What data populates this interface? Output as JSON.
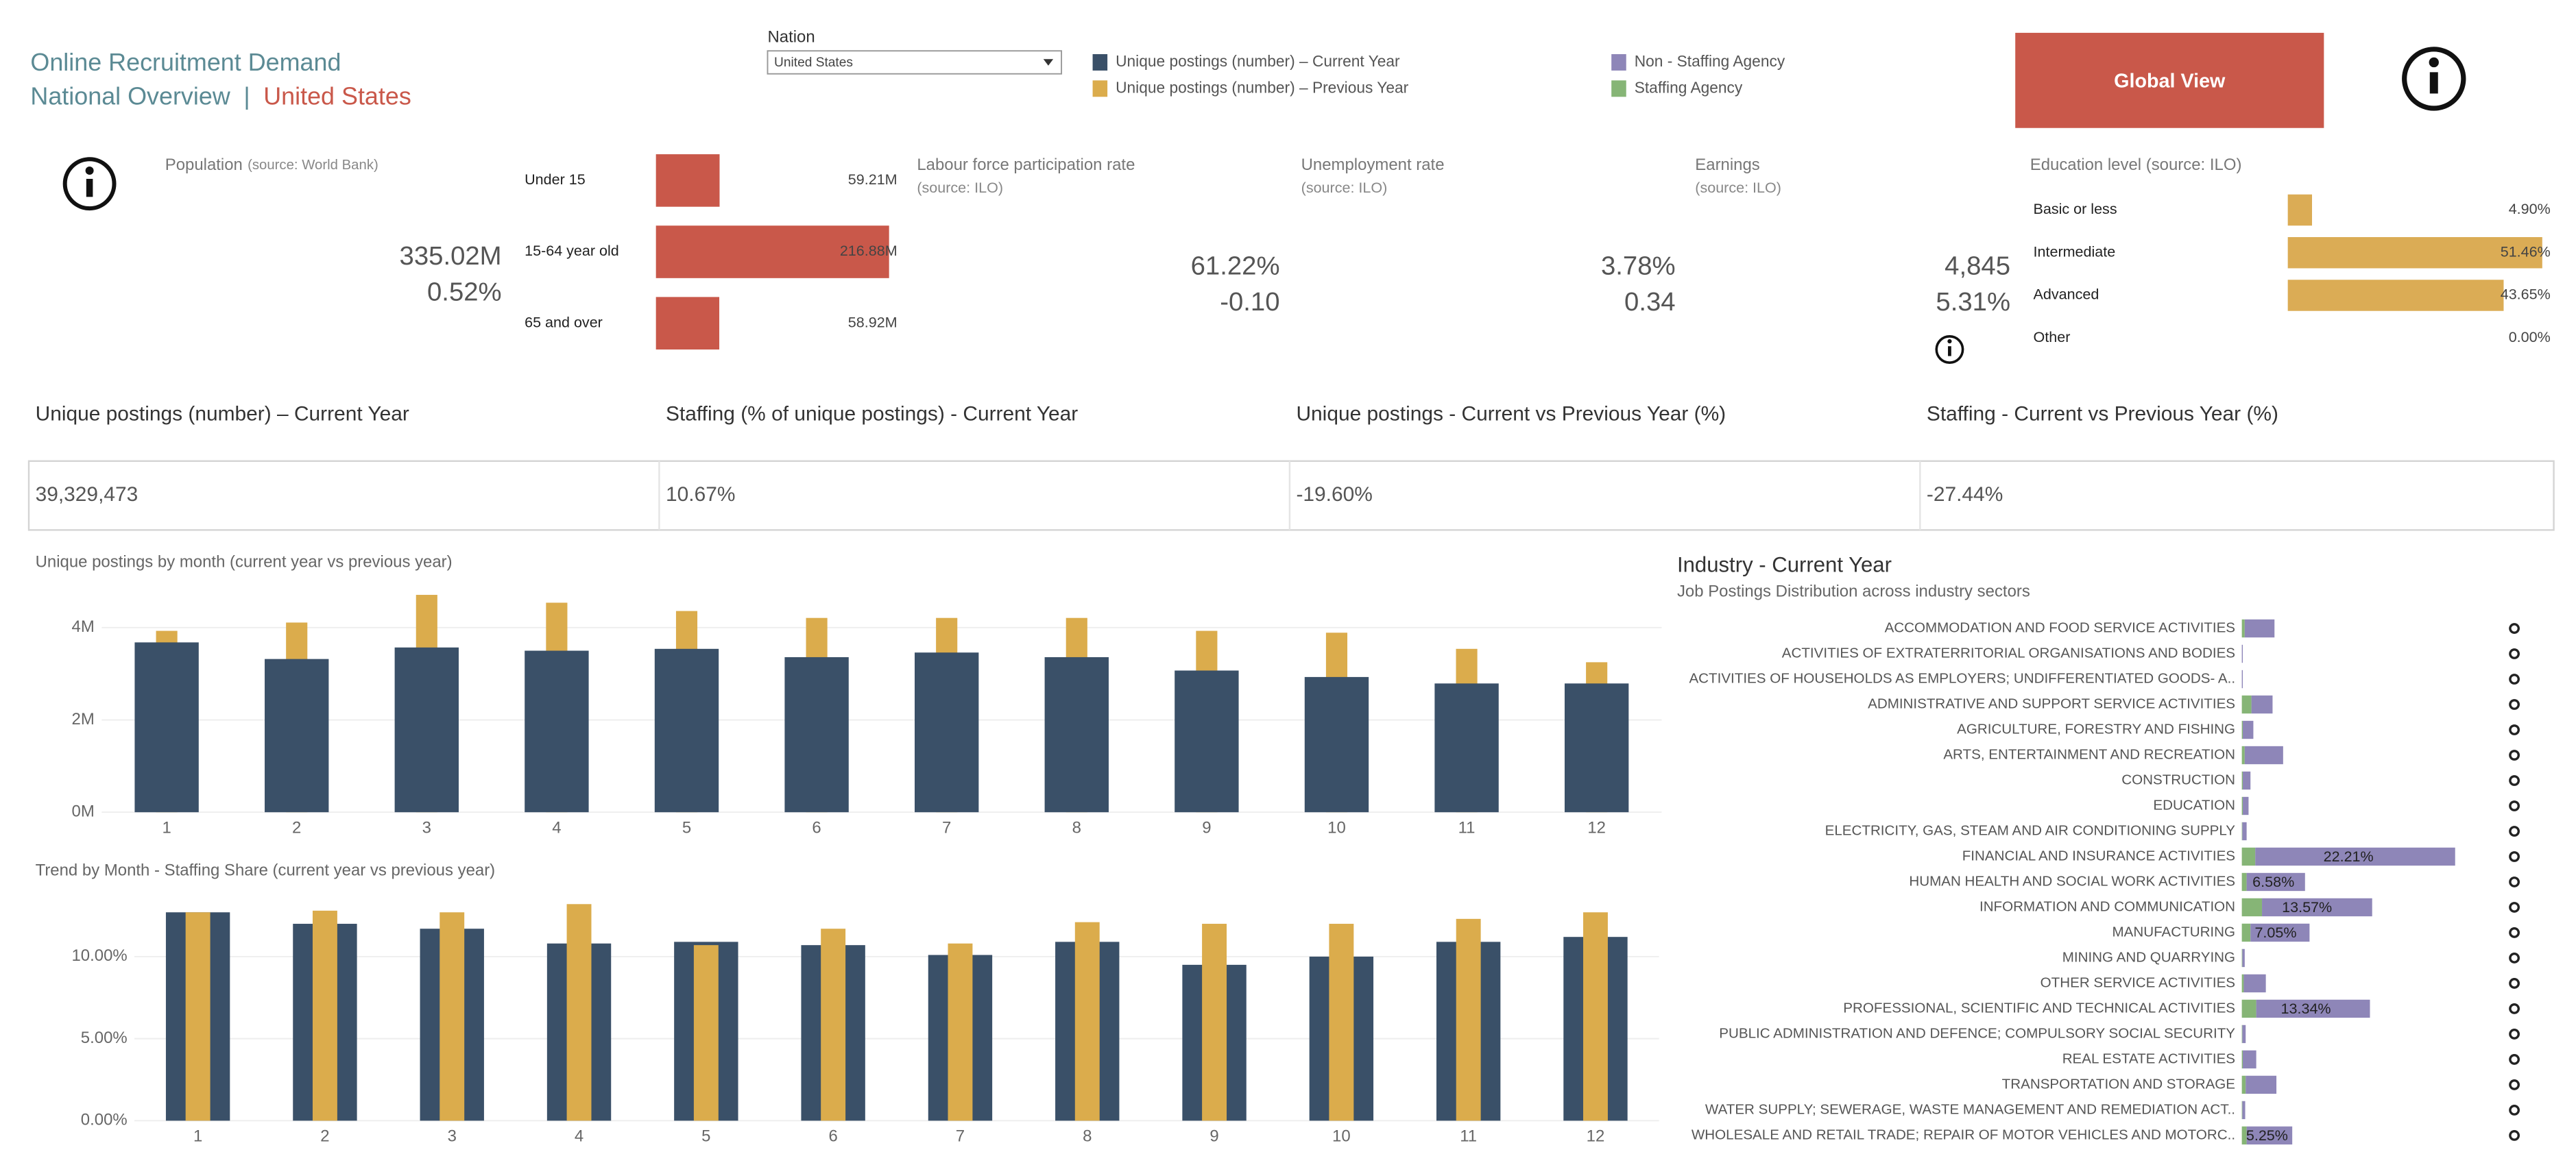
{
  "header": {
    "title": "Online Recruitment Demand",
    "subtitle": "National Overview",
    "separator": "|",
    "country": "United States"
  },
  "filter": {
    "label": "Nation",
    "value": "United States"
  },
  "button": "Global View",
  "indicators": {
    "population": {
      "label": "Population",
      "source": "(source: World Bank)",
      "value": "335.02M",
      "change": "0.52%"
    },
    "labour": {
      "label": "Labour force participation rate",
      "source": "(source: ILO)",
      "value": "61.22%",
      "change": "-0.10"
    },
    "unemployment": {
      "label": "Unemployment rate",
      "source": "(source: ILO)",
      "value": "3.78%",
      "change": "0.34"
    },
    "earnings": {
      "label": "Earnings",
      "source": "(source: ILO)",
      "value": "4,845",
      "change": "5.31%"
    }
  },
  "kpis": [
    {
      "label": "Unique postings (number) – Current Year",
      "value": "39,329,473"
    },
    {
      "label": "Staffing (% of unique postings) - Current Year",
      "value": "10.67%"
    },
    {
      "label": "Unique postings - Current vs Previous Year (%)",
      "value": "-19.60%"
    },
    {
      "label": "Staffing - Current vs Previous Year (%)",
      "value": "-27.44%"
    }
  ],
  "chart_data": [
    {
      "type": "hbar",
      "categories": [
        "Under 15",
        "15-64 year old",
        "65 and over"
      ],
      "values": [
        59.21,
        216.88,
        58.92
      ],
      "value_labels": [
        "59.21M",
        "216.88M",
        "58.92M"
      ],
      "color": "#c9584a"
    },
    {
      "type": "hbar",
      "title": "Education level (source: ILO)",
      "categories": [
        "Basic or less",
        "Intermediate",
        "Advanced",
        "Other"
      ],
      "values": [
        4.9,
        51.46,
        43.65,
        0.0
      ],
      "value_labels": [
        "4.90%",
        "51.46%",
        "43.65%",
        "0.00%"
      ],
      "color": "#dbac55"
    },
    {
      "type": "bar",
      "title": "Unique postings by month (current year vs previous year)",
      "categories": [
        "1",
        "2",
        "3",
        "4",
        "5",
        "6",
        "7",
        "8",
        "9",
        "10",
        "11",
        "12"
      ],
      "series": [
        {
          "name": "Unique postings (number) – Current Year",
          "color": "#3a5068",
          "values": [
            3680000,
            3320000,
            3570000,
            3500000,
            3540000,
            3360000,
            3460000,
            3360000,
            3070000,
            2930000,
            2790000,
            2790000
          ]
        },
        {
          "name": "Unique postings (number) – Previous Year",
          "color": "#dbac4c",
          "values": [
            3930000,
            4110000,
            4710000,
            4540000,
            4360000,
            4210000,
            4210000,
            4210000,
            3930000,
            3890000,
            3540000,
            3250000
          ]
        }
      ],
      "ylim": [
        0,
        4800000
      ],
      "yticks": [
        {
          "value": 0,
          "label": "0M"
        },
        {
          "value": 2000000,
          "label": "2M"
        },
        {
          "value": 4000000,
          "label": "4M"
        }
      ],
      "grid": true
    },
    {
      "type": "overlap_bar",
      "title": "Trend by Month - Staffing Share (current year vs previous year)",
      "categories": [
        "1",
        "2",
        "3",
        "4",
        "5",
        "6",
        "7",
        "8",
        "9",
        "10",
        "11",
        "12"
      ],
      "series": [
        {
          "color": "#3a5068",
          "values": [
            12.7,
            12.0,
            11.7,
            10.8,
            10.9,
            10.7,
            10.1,
            10.9,
            9.5,
            10.0,
            10.9,
            11.2
          ]
        },
        {
          "color": "#dbac4c",
          "values": [
            12.7,
            12.8,
            12.7,
            13.2,
            10.7,
            11.7,
            10.8,
            12.1,
            12.0,
            12.0,
            12.3,
            12.7
          ]
        }
      ],
      "ylim": [
        0,
        13.5
      ],
      "yticks": [
        {
          "value": 0,
          "label": "0.00%"
        },
        {
          "value": 5,
          "label": "5.00%"
        },
        {
          "value": 10,
          "label": "10.00%"
        }
      ],
      "grid": true
    },
    {
      "type": "stacked_hbar",
      "title": "Industry - Current Year",
      "subtitle": "Job Postings Distribution across industry sectors",
      "categories": [
        "ACCOMMODATION AND FOOD SERVICE ACTIVITIES",
        "ACTIVITIES OF EXTRATERRITORIAL ORGANISATIONS AND BODIES",
        "ACTIVITIES OF HOUSEHOLDS AS EMPLOYERS; UNDIFFERENTIATED GOODS- A..",
        "ADMINISTRATIVE AND SUPPORT SERVICE ACTIVITIES",
        "AGRICULTURE, FORESTRY AND FISHING",
        "ARTS, ENTERTAINMENT AND RECREATION",
        "CONSTRUCTION",
        "EDUCATION",
        "ELECTRICITY, GAS, STEAM AND AIR CONDITIONING SUPPLY",
        "FINANCIAL AND INSURANCE ACTIVITIES",
        "HUMAN HEALTH AND SOCIAL WORK ACTIVITIES",
        "INFORMATION AND COMMUNICATION",
        "MANUFACTURING",
        "MINING AND QUARRYING",
        "OTHER SERVICE ACTIVITIES",
        "PROFESSIONAL, SCIENTIFIC AND TECHNICAL ACTIVITIES",
        "PUBLIC ADMINISTRATION AND DEFENCE; COMPULSORY SOCIAL SECURITY",
        "REAL ESTATE ACTIVITIES",
        "TRANSPORTATION AND STORAGE",
        "WATER SUPPLY; SEWERAGE, WASTE MANAGEMENT AND REMEDIATION ACT..",
        "WHOLESALE AND RETAIL TRADE; REPAIR OF MOTOR VEHICLES AND MOTORC.."
      ],
      "series": [
        {
          "name": "Non - Staffing Agency",
          "color": "#8e86b8",
          "values": [
            3.1,
            0.1,
            0.1,
            2.2,
            1.1,
            4.0,
            0.8,
            0.6,
            0.45,
            20.81,
            6.08,
            11.47,
            6.15,
            0.25,
            2.3,
            11.84,
            0.35,
            1.4,
            3.2,
            0.3,
            4.75
          ]
        },
        {
          "name": "Staffing Agency",
          "color": "#86b576",
          "values": [
            0.3,
            0,
            0,
            1.0,
            0.1,
            0.3,
            0.1,
            0.1,
            0.05,
            1.4,
            0.5,
            2.1,
            0.9,
            0.05,
            0.2,
            1.5,
            0.05,
            0.1,
            0.4,
            0.05,
            0.5
          ]
        }
      ],
      "data_labels": [
        null,
        null,
        null,
        null,
        null,
        null,
        null,
        null,
        null,
        "22.21%",
        "6.58%",
        "13.57%",
        "7.05%",
        null,
        null,
        "13.34%",
        null,
        null,
        null,
        null,
        "5.25%"
      ]
    }
  ]
}
